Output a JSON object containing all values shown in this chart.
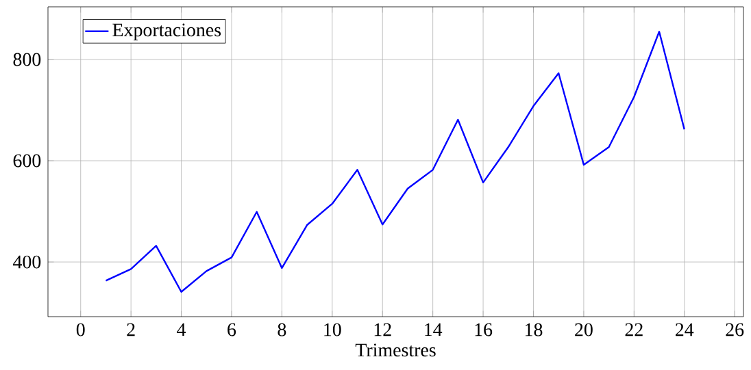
{
  "chart_data": {
    "type": "line",
    "xlabel": "Trimestres",
    "x": [
      1,
      2,
      3,
      4,
      5,
      6,
      7,
      8,
      9,
      10,
      11,
      12,
      13,
      14,
      15,
      16,
      17,
      18,
      19,
      20,
      21,
      22,
      23,
      24
    ],
    "series": [
      {
        "name": "Exportaciones",
        "color": "#0000ff",
        "values": [
          363,
          386,
          432,
          341,
          382,
          409,
          499,
          388,
          473,
          515,
          582,
          474,
          545,
          582,
          681,
          557,
          627,
          708,
          773,
          592,
          627,
          726,
          855,
          662
        ]
      }
    ],
    "xlim": [
      -1.3,
      26.35
    ],
    "ylim": [
      292,
      904
    ],
    "xticks": [
      0,
      2,
      4,
      6,
      8,
      10,
      12,
      14,
      16,
      18,
      20,
      22,
      24,
      26
    ],
    "yticks": [
      400,
      600,
      800
    ],
    "grid": true,
    "legend": "top left",
    "marker": "none",
    "line_style": "solid"
  }
}
